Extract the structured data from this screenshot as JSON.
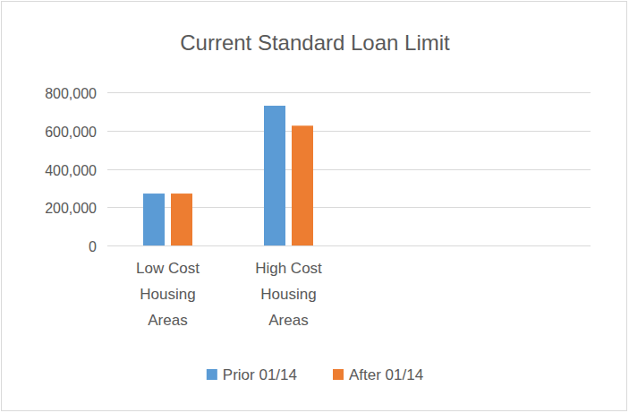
{
  "chart_data": {
    "type": "bar",
    "title": "Current Standard Loan Limit",
    "categories": [
      "Low Cost Housing Areas",
      "High Cost Housing Areas",
      null,
      null
    ],
    "series": [
      {
        "name": "Prior 01/14",
        "color": "#5b9bd5",
        "values": [
          271050,
          729750,
          null,
          null
        ]
      },
      {
        "name": "After 01/14",
        "color": "#ed7d31",
        "values": [
          271050,
          625500,
          null,
          null
        ]
      }
    ],
    "ylim": [
      0,
      800000
    ],
    "yticks": [
      0,
      {
        "value": 200000,
        "label": "200,000"
      },
      {
        "value": 400000,
        "label": "400,000"
      },
      {
        "value": 600000,
        "label": "600,000"
      },
      {
        "value": 800000,
        "label": "800,000"
      }
    ],
    "grid": true,
    "legend": "bottom"
  }
}
